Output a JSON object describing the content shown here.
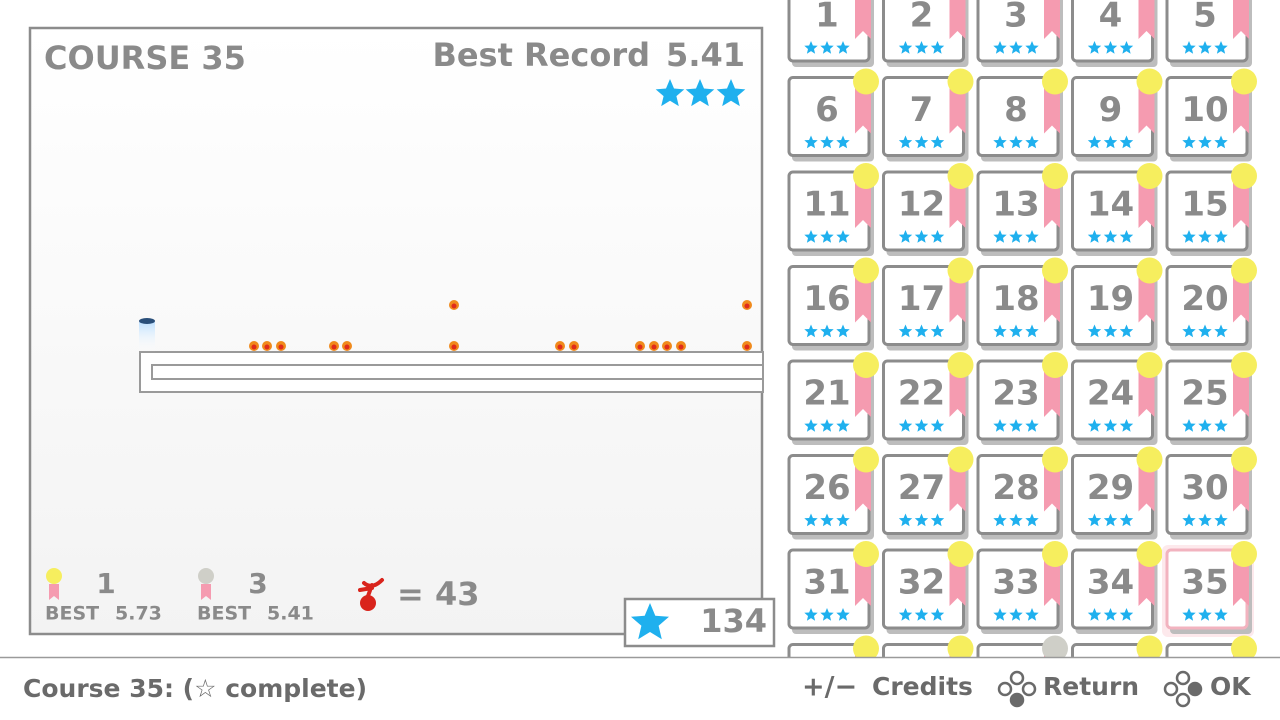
{
  "course_panel": {
    "title": "COURSE 35",
    "best_record_label": "Best Record",
    "best_record": "5.41",
    "gold": {
      "rank": "1",
      "best_label": "BEST",
      "best": "5.73"
    },
    "silver": {
      "rank": "3",
      "best_label": "BEST",
      "best": "5.41"
    },
    "deaths": "= 43"
  },
  "star_total": "134",
  "courses": [
    1,
    2,
    3,
    4,
    5,
    6,
    7,
    8,
    9,
    10,
    11,
    12,
    13,
    14,
    15,
    16,
    17,
    18,
    19,
    20,
    21,
    22,
    23,
    24,
    25,
    26,
    27,
    28,
    29,
    30,
    31,
    32,
    33,
    34,
    35
  ],
  "footer": {
    "status": "Course 35: (☆ complete)",
    "credits_key": "+/−",
    "credits": "Credits",
    "return": "Return",
    "ok": "OK"
  }
}
